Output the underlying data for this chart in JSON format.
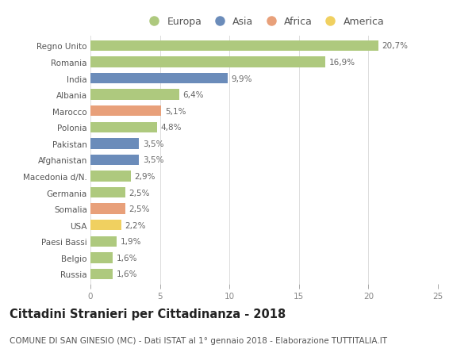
{
  "categories": [
    "Russia",
    "Belgio",
    "Paesi Bassi",
    "USA",
    "Somalia",
    "Germania",
    "Macedonia d/N.",
    "Afghanistan",
    "Pakistan",
    "Polonia",
    "Marocco",
    "Albania",
    "India",
    "Romania",
    "Regno Unito"
  ],
  "values": [
    1.6,
    1.6,
    1.9,
    2.2,
    2.5,
    2.5,
    2.9,
    3.5,
    3.5,
    4.8,
    5.1,
    6.4,
    9.9,
    16.9,
    20.7
  ],
  "labels": [
    "1,6%",
    "1,6%",
    "1,9%",
    "2,2%",
    "2,5%",
    "2,5%",
    "2,9%",
    "3,5%",
    "3,5%",
    "4,8%",
    "5,1%",
    "6,4%",
    "9,9%",
    "16,9%",
    "20,7%"
  ],
  "continents": [
    "Europa",
    "Europa",
    "Europa",
    "America",
    "Africa",
    "Europa",
    "Europa",
    "Asia",
    "Asia",
    "Europa",
    "Africa",
    "Europa",
    "Asia",
    "Europa",
    "Europa"
  ],
  "colors": {
    "Europa": "#aec97e",
    "Asia": "#6b8cba",
    "Africa": "#e8a07a",
    "America": "#f0d060"
  },
  "legend_order": [
    "Europa",
    "Asia",
    "Africa",
    "America"
  ],
  "title": "Cittadini Stranieri per Cittadinanza - 2018",
  "subtitle": "COMUNE DI SAN GINESIO (MC) - Dati ISTAT al 1° gennaio 2018 - Elaborazione TUTTITALIA.IT",
  "xlim": [
    0,
    25
  ],
  "xticks": [
    0,
    5,
    10,
    15,
    20,
    25
  ],
  "background_color": "#ffffff",
  "bar_height": 0.65,
  "title_fontsize": 10.5,
  "subtitle_fontsize": 7.5,
  "label_fontsize": 7.5,
  "tick_fontsize": 7.5,
  "legend_fontsize": 9
}
